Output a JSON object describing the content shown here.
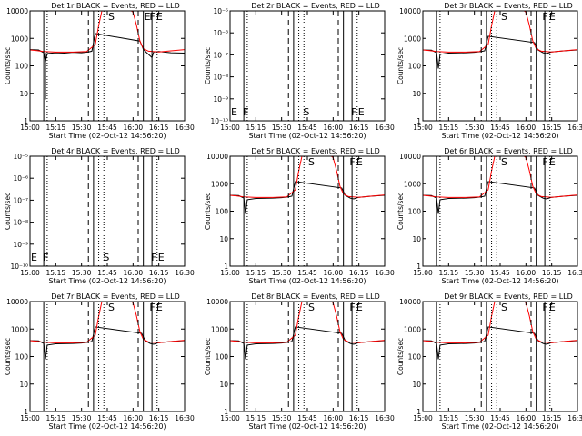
{
  "figure": {
    "subtitle_prefix": "Start Time",
    "start_time": "(02-Oct-12 14:56:20)",
    "ylabel": "Counts/sec",
    "x_ticks": [
      "15:00",
      "15:15",
      "15:30",
      "15:45",
      "16:00",
      "16:15",
      "16:30"
    ]
  },
  "colors": {
    "events": "#000000",
    "lld": "#ff0000"
  },
  "chart_data": [
    {
      "type": "line",
      "title": "Det 1r BLACK = Events, RED = LLD",
      "ylabel": "Counts/sec",
      "yscale": "log",
      "ylim": [
        1,
        10000
      ],
      "y_ticks": [
        "1",
        "10",
        "100",
        "1000",
        "10000"
      ],
      "has_data": true,
      "variant": "a",
      "markers": [
        {
          "label": "E",
          "x": "16:06"
        },
        {
          "label": "S",
          "x": "15:45"
        },
        {
          "label": "F",
          "x": "16:09"
        },
        {
          "label": "E",
          "x": "16:13"
        }
      ]
    },
    {
      "type": "line",
      "title": "Det 2r BLACK = Events, RED = LLD",
      "ylabel": "Counts/sec",
      "yscale": "log",
      "ylim": [
        1e-10,
        1e-05
      ],
      "y_ticks": [
        "10⁻¹⁰",
        "10⁻⁹",
        "10⁻⁸",
        "10⁻⁷",
        "10⁻⁶",
        "10⁻⁵"
      ],
      "has_data": false,
      "markers": [
        {
          "label": "E",
          "x": "15:00"
        },
        {
          "label": "F",
          "x": "15:07"
        },
        {
          "label": "S",
          "x": "15:42"
        },
        {
          "label": "F",
          "x": "16:10"
        },
        {
          "label": "E",
          "x": "16:14"
        }
      ]
    },
    {
      "type": "line",
      "title": "Det 3r BLACK = Events, RED = LLD",
      "ylabel": "Counts/sec",
      "yscale": "log",
      "ylim": [
        1,
        10000
      ],
      "y_ticks": [
        "1",
        "10",
        "100",
        "1000",
        "10000"
      ],
      "has_data": true,
      "variant": "b",
      "markers": [
        {
          "label": "S",
          "x": "15:45"
        },
        {
          "label": "F",
          "x": "16:09"
        },
        {
          "label": "E",
          "x": "16:13"
        }
      ]
    },
    {
      "type": "line",
      "title": "Det 4r BLACK = Events, RED = LLD",
      "ylabel": "Counts/sec",
      "yscale": "log",
      "ylim": [
        1e-10,
        1e-05
      ],
      "y_ticks": [
        "10⁻¹⁰",
        "10⁻⁹",
        "10⁻⁸",
        "10⁻⁷",
        "10⁻⁶",
        "10⁻⁵"
      ],
      "has_data": false,
      "markers": [
        {
          "label": "E",
          "x": "15:00"
        },
        {
          "label": "F",
          "x": "15:07"
        },
        {
          "label": "S",
          "x": "15:42"
        },
        {
          "label": "F",
          "x": "16:10"
        },
        {
          "label": "E",
          "x": "16:14"
        }
      ]
    },
    {
      "type": "line",
      "title": "Det 5r BLACK = Events, RED = LLD",
      "ylabel": "Counts/sec",
      "yscale": "log",
      "ylim": [
        1,
        10000
      ],
      "y_ticks": [
        "1",
        "10",
        "100",
        "1000",
        "10000"
      ],
      "has_data": true,
      "variant": "b",
      "markers": [
        {
          "label": "S",
          "x": "15:45"
        },
        {
          "label": "F",
          "x": "16:09"
        },
        {
          "label": "E",
          "x": "16:13"
        }
      ]
    },
    {
      "type": "line",
      "title": "Det 6r BLACK = Events, RED = LLD",
      "ylabel": "Counts/sec",
      "yscale": "log",
      "ylim": [
        1,
        10000
      ],
      "y_ticks": [
        "1",
        "10",
        "100",
        "1000",
        "10000"
      ],
      "has_data": true,
      "variant": "b",
      "markers": [
        {
          "label": "S",
          "x": "15:45"
        },
        {
          "label": "F",
          "x": "16:09"
        },
        {
          "label": "E",
          "x": "16:13"
        }
      ]
    },
    {
      "type": "line",
      "title": "Det 7r BLACK = Events, RED = LLD",
      "ylabel": "Counts/sec",
      "yscale": "log",
      "ylim": [
        1,
        10000
      ],
      "y_ticks": [
        "1",
        "10",
        "100",
        "1000",
        "10000"
      ],
      "has_data": true,
      "variant": "b",
      "markers": [
        {
          "label": "S",
          "x": "15:45"
        },
        {
          "label": "F",
          "x": "16:09"
        },
        {
          "label": "E",
          "x": "16:13"
        }
      ]
    },
    {
      "type": "line",
      "title": "Det 8r BLACK = Events, RED = LLD",
      "ylabel": "Counts/sec",
      "yscale": "log",
      "ylim": [
        1,
        10000
      ],
      "y_ticks": [
        "1",
        "10",
        "100",
        "1000",
        "10000"
      ],
      "has_data": true,
      "variant": "b",
      "markers": [
        {
          "label": "S",
          "x": "15:45"
        },
        {
          "label": "F",
          "x": "16:09"
        },
        {
          "label": "E",
          "x": "16:13"
        }
      ]
    },
    {
      "type": "line",
      "title": "Det 9r BLACK = Events, RED = LLD",
      "ylabel": "Counts/sec",
      "yscale": "log",
      "ylim": [
        1,
        10000
      ],
      "y_ticks": [
        "1",
        "10",
        "100",
        "1000",
        "10000"
      ],
      "has_data": true,
      "variant": "b",
      "markers": [
        {
          "label": "S",
          "x": "15:45"
        },
        {
          "label": "F",
          "x": "16:09"
        },
        {
          "label": "E",
          "x": "16:13"
        }
      ]
    }
  ]
}
